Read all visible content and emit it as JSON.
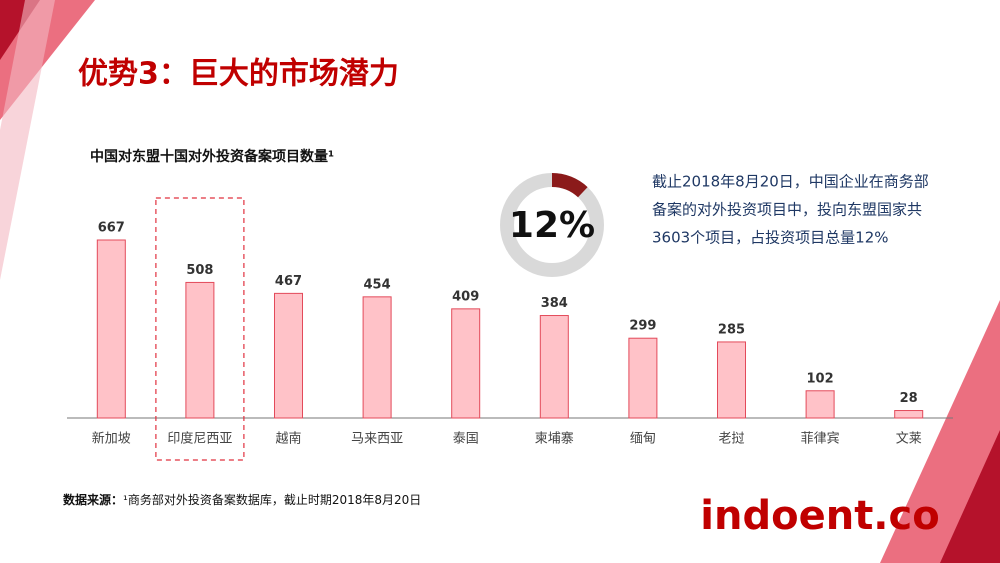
{
  "header": {
    "title": "优势3：巨大的市场潜力"
  },
  "chart_data": {
    "type": "bar",
    "title": "中国对东盟十国对外投资备案项目数量¹",
    "categories": [
      "新加坡",
      "印度尼西亚",
      "越南",
      "马来西亚",
      "泰国",
      "柬埔寨",
      "缅甸",
      "老挝",
      "菲律宾",
      "文莱"
    ],
    "values": [
      667,
      508,
      467,
      454,
      409,
      384,
      299,
      285,
      102,
      28
    ],
    "color": "#ffc2c8",
    "edge_color": "#e34a5a",
    "highlight_index": 1
  },
  "donut": {
    "value": 12,
    "label": "12%",
    "color": "#8b1a1a",
    "rest_color": "#d9d9d9"
  },
  "note": {
    "lines": [
      "截止2018年8月20日，中国企业在商务部",
      "备案的对外投资项目中，投向东盟国家共",
      "3603个项目，占投资项目总量12%"
    ]
  },
  "source": {
    "label": "数据来源：",
    "text": "¹商务部对外投资备案数据库，截止时期2018年8月20日"
  },
  "watermark": "indoent.co"
}
